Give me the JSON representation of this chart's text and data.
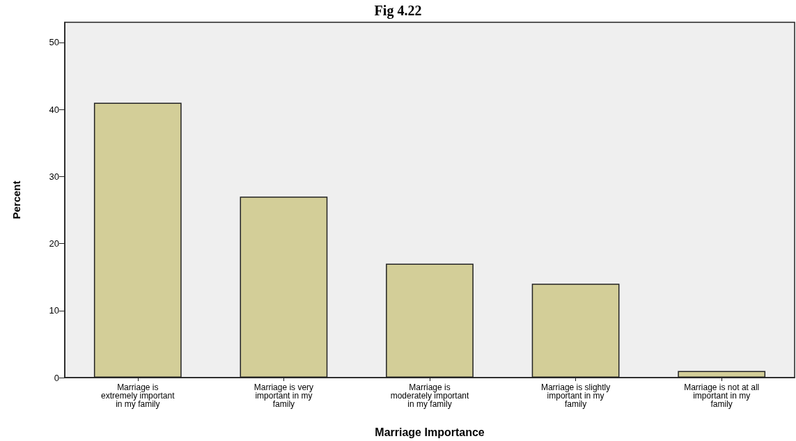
{
  "chart_data": {
    "type": "bar",
    "title": "Fig 4.22",
    "xlabel": "Marriage Importance",
    "ylabel": "Percent",
    "categories": [
      "Marriage is\nextremely important\nin my family",
      "Marriage is very\nimportant in my\nfamily",
      "Marriage is\nmoderately important\nin my family",
      "Marriage is slightly\nimportant in my\nfamily",
      "Marriage is not at all\nimportant in my\nfamily"
    ],
    "values": [
      41,
      27,
      17,
      14,
      1
    ],
    "color": "#d3ce98",
    "ylim": [
      0,
      53
    ],
    "yticks": [
      0,
      10,
      20,
      30,
      40,
      50
    ],
    "grid": false
  }
}
